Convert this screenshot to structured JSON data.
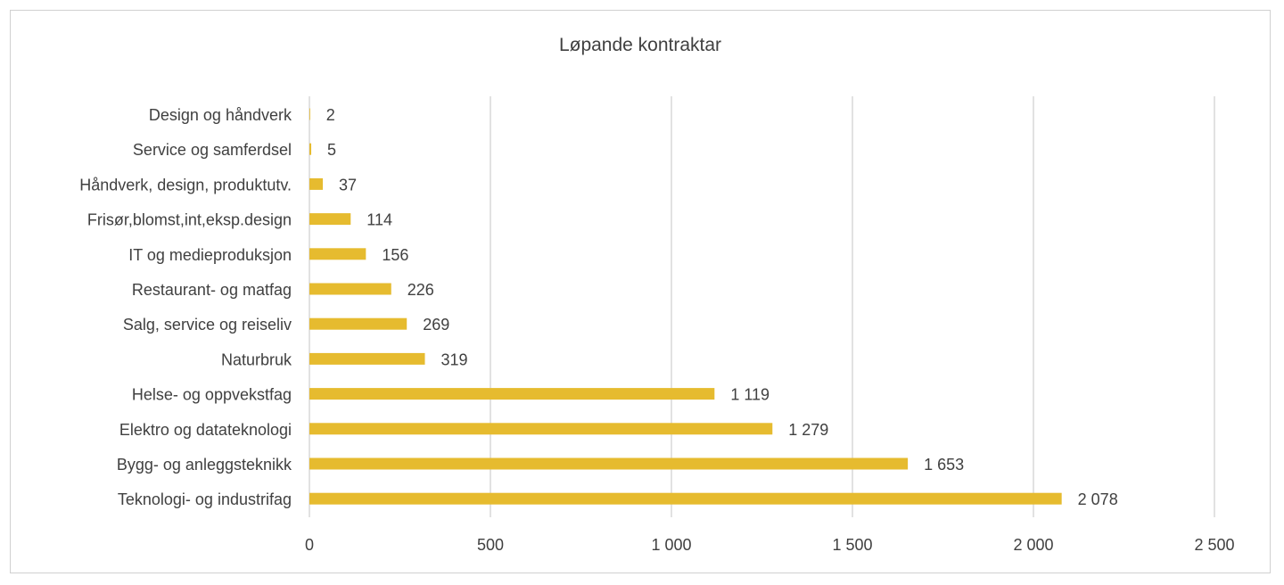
{
  "chart_data": {
    "type": "bar",
    "orientation": "horizontal",
    "title": "Løpande kontraktar",
    "xlabel": "",
    "ylabel": "",
    "xlim": [
      0,
      2500
    ],
    "x_ticks": [
      0,
      500,
      1000,
      1500,
      2000,
      2500
    ],
    "x_tick_labels": [
      "0",
      "500",
      "1 000",
      "1 500",
      "2 000",
      "2 500"
    ],
    "grid": "vertical",
    "legend": "none",
    "bar_color": "#E6BB2F",
    "categories": [
      "Design og håndverk",
      "Service og samferdsel",
      "Håndverk, design, produktutv.",
      "Frisør,blomst,int,eksp.design",
      "IT og medieproduksjon",
      "Restaurant- og matfag",
      "Salg, service og reiseliv",
      "Naturbruk",
      "Helse- og oppvekstfag",
      "Elektro og datateknologi",
      "Bygg- og anleggsteknikk",
      "Teknologi- og industrifag"
    ],
    "values": [
      2,
      5,
      37,
      114,
      156,
      226,
      269,
      319,
      1119,
      1279,
      1653,
      2078
    ],
    "value_labels": [
      "2",
      "5",
      "37",
      "114",
      "156",
      "226",
      "269",
      "319",
      "1 119",
      "1 279",
      "1 653",
      "2 078"
    ]
  },
  "colors": {
    "bar": "#E6BB2F",
    "grid": "#d9d9d9",
    "text": "#404040",
    "border": "#d0d0d0"
  }
}
